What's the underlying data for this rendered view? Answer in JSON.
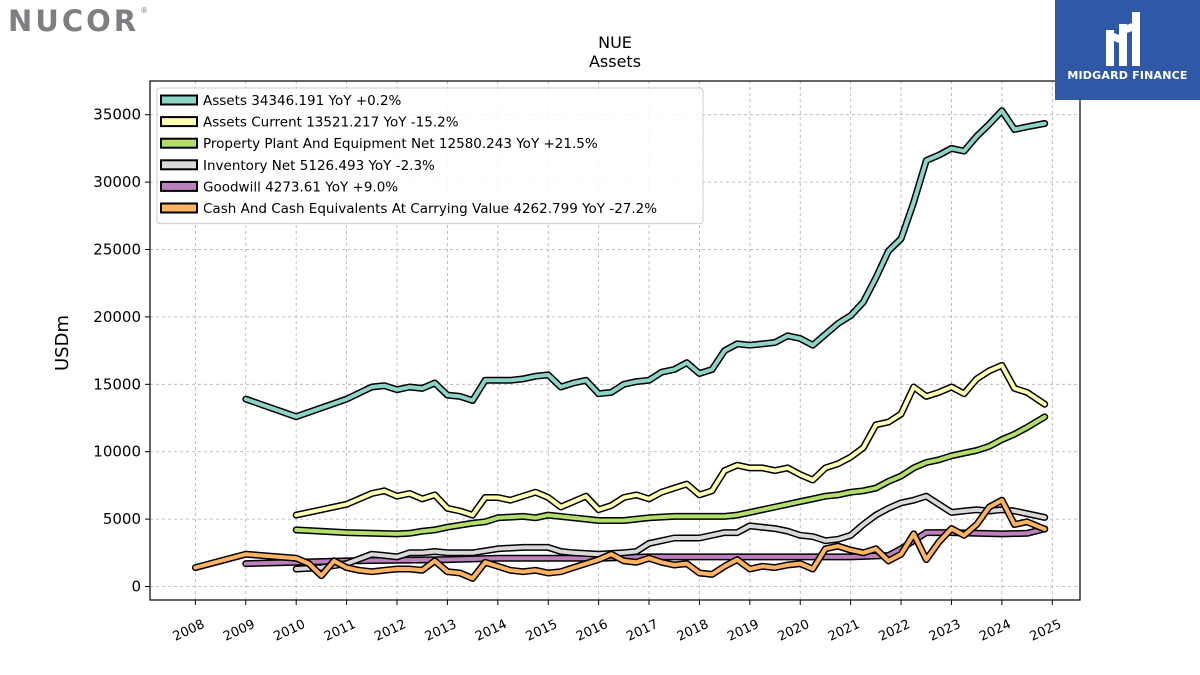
{
  "brand": {
    "company_logo": "NUCOR",
    "company_logo_mark": "®",
    "sponsor_logo_text": "MIDGARD FINANCE",
    "sponsor_bg": "#2f59a8"
  },
  "chart_data": {
    "type": "line",
    "title": "NUE",
    "subtitle": "Assets",
    "xlabel": "",
    "ylabel": "USDm",
    "xlim": [
      2007.1,
      2025.55
    ],
    "ylim": [
      -1000,
      37500
    ],
    "x_ticks": [
      2008,
      2009,
      2010,
      2011,
      2012,
      2013,
      2014,
      2015,
      2016,
      2017,
      2018,
      2019,
      2020,
      2021,
      2022,
      2023,
      2024,
      2025
    ],
    "y_ticks": [
      0,
      5000,
      10000,
      15000,
      20000,
      25000,
      30000,
      35000
    ],
    "grid": true,
    "legend_position": "top-left",
    "series": [
      {
        "name": "Assets",
        "legend": "Assets  34346.191 YoY +0.2%",
        "color": "#8dd3c7",
        "points": [
          [
            2009.0,
            13900
          ],
          [
            2010.0,
            12600
          ],
          [
            2011.0,
            13900
          ],
          [
            2011.5,
            14800
          ],
          [
            2011.75,
            14900
          ],
          [
            2012.0,
            14600
          ],
          [
            2012.25,
            14800
          ],
          [
            2012.5,
            14700
          ],
          [
            2012.75,
            15100
          ],
          [
            2013.0,
            14200
          ],
          [
            2013.25,
            14100
          ],
          [
            2013.5,
            13800
          ],
          [
            2013.75,
            15300
          ],
          [
            2014.0,
            15300
          ],
          [
            2014.25,
            15300
          ],
          [
            2014.5,
            15400
          ],
          [
            2014.75,
            15600
          ],
          [
            2015.0,
            15700
          ],
          [
            2015.25,
            14800
          ],
          [
            2015.5,
            15100
          ],
          [
            2015.75,
            15300
          ],
          [
            2016.0,
            14300
          ],
          [
            2016.25,
            14400
          ],
          [
            2016.5,
            15000
          ],
          [
            2016.75,
            15200
          ],
          [
            2017.0,
            15300
          ],
          [
            2017.25,
            15900
          ],
          [
            2017.5,
            16100
          ],
          [
            2017.75,
            16600
          ],
          [
            2018.0,
            15800
          ],
          [
            2018.25,
            16100
          ],
          [
            2018.5,
            17500
          ],
          [
            2018.75,
            18000
          ],
          [
            2019.0,
            17900
          ],
          [
            2019.25,
            18000
          ],
          [
            2019.5,
            18100
          ],
          [
            2019.75,
            18600
          ],
          [
            2020.0,
            18400
          ],
          [
            2020.25,
            17900
          ],
          [
            2020.5,
            18700
          ],
          [
            2020.75,
            19500
          ],
          [
            2021.0,
            20100
          ],
          [
            2021.25,
            21100
          ],
          [
            2021.5,
            22900
          ],
          [
            2021.75,
            24900
          ],
          [
            2022.0,
            25800
          ],
          [
            2022.25,
            28500
          ],
          [
            2022.5,
            31600
          ],
          [
            2022.75,
            32000
          ],
          [
            2023.0,
            32500
          ],
          [
            2023.25,
            32300
          ],
          [
            2023.5,
            33400
          ],
          [
            2023.75,
            34300
          ],
          [
            2024.0,
            35300
          ],
          [
            2024.25,
            33900
          ],
          [
            2024.5,
            34100
          ],
          [
            2024.85,
            34346
          ]
        ]
      },
      {
        "name": "Assets Current",
        "legend": "Assets Current  13521.217 YoY -15.2%",
        "color": "#ffffb3",
        "points": [
          [
            2010.0,
            5300
          ],
          [
            2011.0,
            6100
          ],
          [
            2011.5,
            6900
          ],
          [
            2011.75,
            7100
          ],
          [
            2012.0,
            6700
          ],
          [
            2012.25,
            6900
          ],
          [
            2012.5,
            6500
          ],
          [
            2012.75,
            6800
          ],
          [
            2013.0,
            5800
          ],
          [
            2013.25,
            5600
          ],
          [
            2013.5,
            5300
          ],
          [
            2013.75,
            6600
          ],
          [
            2014.0,
            6600
          ],
          [
            2014.25,
            6400
          ],
          [
            2014.5,
            6700
          ],
          [
            2014.75,
            7000
          ],
          [
            2015.0,
            6600
          ],
          [
            2015.25,
            5900
          ],
          [
            2015.5,
            6300
          ],
          [
            2015.75,
            6700
          ],
          [
            2016.0,
            5700
          ],
          [
            2016.25,
            6000
          ],
          [
            2016.5,
            6600
          ],
          [
            2016.75,
            6800
          ],
          [
            2017.0,
            6500
          ],
          [
            2017.25,
            7000
          ],
          [
            2017.5,
            7300
          ],
          [
            2017.75,
            7600
          ],
          [
            2018.0,
            6800
          ],
          [
            2018.25,
            7100
          ],
          [
            2018.5,
            8600
          ],
          [
            2018.75,
            9000
          ],
          [
            2019.0,
            8800
          ],
          [
            2019.25,
            8800
          ],
          [
            2019.5,
            8600
          ],
          [
            2019.75,
            8800
          ],
          [
            2020.0,
            8300
          ],
          [
            2020.25,
            7900
          ],
          [
            2020.5,
            8800
          ],
          [
            2020.75,
            9100
          ],
          [
            2021.0,
            9600
          ],
          [
            2021.25,
            10300
          ],
          [
            2021.5,
            12000
          ],
          [
            2021.75,
            12200
          ],
          [
            2022.0,
            12800
          ],
          [
            2022.25,
            14800
          ],
          [
            2022.5,
            14100
          ],
          [
            2022.75,
            14400
          ],
          [
            2023.0,
            14800
          ],
          [
            2023.25,
            14300
          ],
          [
            2023.5,
            15400
          ],
          [
            2023.75,
            16000
          ],
          [
            2024.0,
            16400
          ],
          [
            2024.25,
            14700
          ],
          [
            2024.5,
            14400
          ],
          [
            2024.85,
            13521
          ]
        ]
      },
      {
        "name": "Property Plant And Equipment Net",
        "legend": "Property Plant And Equipment Net  12580.243 YoY +21.5%",
        "color": "#b3de69",
        "points": [
          [
            2010.0,
            4200
          ],
          [
            2011.0,
            4000
          ],
          [
            2012.0,
            3900
          ],
          [
            2012.25,
            3950
          ],
          [
            2012.5,
            4100
          ],
          [
            2012.75,
            4200
          ],
          [
            2013.0,
            4400
          ],
          [
            2013.5,
            4700
          ],
          [
            2013.75,
            4800
          ],
          [
            2014.0,
            5100
          ],
          [
            2014.5,
            5200
          ],
          [
            2014.75,
            5100
          ],
          [
            2015.0,
            5300
          ],
          [
            2015.5,
            5100
          ],
          [
            2015.75,
            5000
          ],
          [
            2016.0,
            4900
          ],
          [
            2016.5,
            4900
          ],
          [
            2017.0,
            5100
          ],
          [
            2017.5,
            5200
          ],
          [
            2018.0,
            5200
          ],
          [
            2018.5,
            5200
          ],
          [
            2018.75,
            5300
          ],
          [
            2019.0,
            5500
          ],
          [
            2019.25,
            5700
          ],
          [
            2019.5,
            5900
          ],
          [
            2019.75,
            6100
          ],
          [
            2020.0,
            6300
          ],
          [
            2020.25,
            6500
          ],
          [
            2020.5,
            6700
          ],
          [
            2020.75,
            6800
          ],
          [
            2021.0,
            7000
          ],
          [
            2021.25,
            7100
          ],
          [
            2021.5,
            7300
          ],
          [
            2021.75,
            7800
          ],
          [
            2022.0,
            8200
          ],
          [
            2022.25,
            8800
          ],
          [
            2022.5,
            9200
          ],
          [
            2022.75,
            9400
          ],
          [
            2023.0,
            9700
          ],
          [
            2023.25,
            9900
          ],
          [
            2023.5,
            10100
          ],
          [
            2023.75,
            10400
          ],
          [
            2024.0,
            10900
          ],
          [
            2024.25,
            11300
          ],
          [
            2024.5,
            11800
          ],
          [
            2024.85,
            12580
          ]
        ]
      },
      {
        "name": "Inventory Net",
        "legend": "Inventory Net  5126.493 YoY -2.3%",
        "color": "#d9d9d9",
        "points": [
          [
            2010.0,
            1300
          ],
          [
            2010.5,
            1400
          ],
          [
            2011.0,
            1700
          ],
          [
            2011.5,
            2400
          ],
          [
            2011.75,
            2300
          ],
          [
            2012.0,
            2200
          ],
          [
            2012.25,
            2500
          ],
          [
            2012.5,
            2500
          ],
          [
            2012.75,
            2600
          ],
          [
            2013.0,
            2500
          ],
          [
            2013.5,
            2500
          ],
          [
            2014.0,
            2800
          ],
          [
            2014.5,
            2900
          ],
          [
            2015.0,
            2900
          ],
          [
            2015.25,
            2600
          ],
          [
            2015.5,
            2500
          ],
          [
            2016.0,
            2400
          ],
          [
            2016.5,
            2500
          ],
          [
            2016.75,
            2600
          ],
          [
            2017.0,
            3200
          ],
          [
            2017.5,
            3600
          ],
          [
            2018.0,
            3600
          ],
          [
            2018.5,
            4000
          ],
          [
            2018.75,
            4000
          ],
          [
            2019.0,
            4500
          ],
          [
            2019.5,
            4300
          ],
          [
            2019.75,
            4100
          ],
          [
            2020.0,
            3800
          ],
          [
            2020.25,
            3700
          ],
          [
            2020.5,
            3400
          ],
          [
            2020.75,
            3500
          ],
          [
            2021.0,
            3800
          ],
          [
            2021.25,
            4600
          ],
          [
            2021.5,
            5300
          ],
          [
            2021.75,
            5800
          ],
          [
            2022.0,
            6200
          ],
          [
            2022.25,
            6400
          ],
          [
            2022.5,
            6700
          ],
          [
            2022.75,
            6100
          ],
          [
            2023.0,
            5500
          ],
          [
            2023.25,
            5600
          ],
          [
            2023.5,
            5700
          ],
          [
            2023.75,
            5600
          ],
          [
            2024.0,
            5700
          ],
          [
            2024.25,
            5600
          ],
          [
            2024.5,
            5400
          ],
          [
            2024.85,
            5126
          ]
        ]
      },
      {
        "name": "Goodwill",
        "legend": "Goodwill  4273.61 YoY +9.0%",
        "color": "#bc80bd",
        "points": [
          [
            2009.0,
            1700
          ],
          [
            2010.0,
            1800
          ],
          [
            2011.0,
            1900
          ],
          [
            2012.0,
            1950
          ],
          [
            2013.0,
            2000
          ],
          [
            2014.0,
            2100
          ],
          [
            2015.0,
            2100
          ],
          [
            2016.0,
            2100
          ],
          [
            2017.0,
            2200
          ],
          [
            2018.0,
            2200
          ],
          [
            2019.0,
            2200
          ],
          [
            2020.0,
            2200
          ],
          [
            2021.0,
            2200
          ],
          [
            2021.75,
            2300
          ],
          [
            2022.0,
            2800
          ],
          [
            2022.5,
            4000
          ],
          [
            2023.0,
            4000
          ],
          [
            2023.5,
            3950
          ],
          [
            2024.0,
            3900
          ],
          [
            2024.5,
            3950
          ],
          [
            2024.85,
            4274
          ]
        ]
      },
      {
        "name": "Cash And Cash Equivalents At Carrying Value",
        "legend": "Cash And Cash Equivalents At Carrying Value  4262.799 YoY -27.2%",
        "color": "#fdb462",
        "points": [
          [
            2008.0,
            1400
          ],
          [
            2009.0,
            2400
          ],
          [
            2010.0,
            2100
          ],
          [
            2010.25,
            1700
          ],
          [
            2010.5,
            800
          ],
          [
            2010.75,
            1900
          ],
          [
            2011.0,
            1400
          ],
          [
            2011.25,
            1200
          ],
          [
            2011.5,
            1100
          ],
          [
            2011.75,
            1200
          ],
          [
            2012.0,
            1300
          ],
          [
            2012.25,
            1300
          ],
          [
            2012.5,
            1200
          ],
          [
            2012.75,
            1900
          ],
          [
            2013.0,
            1100
          ],
          [
            2013.25,
            1000
          ],
          [
            2013.5,
            600
          ],
          [
            2013.75,
            1800
          ],
          [
            2014.0,
            1500
          ],
          [
            2014.25,
            1200
          ],
          [
            2014.5,
            1100
          ],
          [
            2014.75,
            1200
          ],
          [
            2015.0,
            1000
          ],
          [
            2015.25,
            1100
          ],
          [
            2015.5,
            1400
          ],
          [
            2015.75,
            1700
          ],
          [
            2016.0,
            2000
          ],
          [
            2016.25,
            2400
          ],
          [
            2016.5,
            1900
          ],
          [
            2016.75,
            1800
          ],
          [
            2017.0,
            2100
          ],
          [
            2017.25,
            1800
          ],
          [
            2017.5,
            1600
          ],
          [
            2017.75,
            1700
          ],
          [
            2018.0,
            1000
          ],
          [
            2018.25,
            900
          ],
          [
            2018.5,
            1500
          ],
          [
            2018.75,
            2000
          ],
          [
            2019.0,
            1300
          ],
          [
            2019.25,
            1500
          ],
          [
            2019.5,
            1400
          ],
          [
            2019.75,
            1600
          ],
          [
            2020.0,
            1700
          ],
          [
            2020.25,
            1300
          ],
          [
            2020.5,
            2800
          ],
          [
            2020.75,
            3000
          ],
          [
            2021.0,
            2700
          ],
          [
            2021.25,
            2500
          ],
          [
            2021.5,
            2800
          ],
          [
            2021.75,
            1900
          ],
          [
            2022.0,
            2400
          ],
          [
            2022.25,
            3900
          ],
          [
            2022.5,
            2000
          ],
          [
            2022.75,
            3300
          ],
          [
            2023.0,
            4300
          ],
          [
            2023.25,
            3800
          ],
          [
            2023.5,
            4600
          ],
          [
            2023.75,
            5900
          ],
          [
            2024.0,
            6400
          ],
          [
            2024.25,
            4600
          ],
          [
            2024.5,
            4800
          ],
          [
            2024.85,
            4263
          ]
        ]
      }
    ]
  }
}
